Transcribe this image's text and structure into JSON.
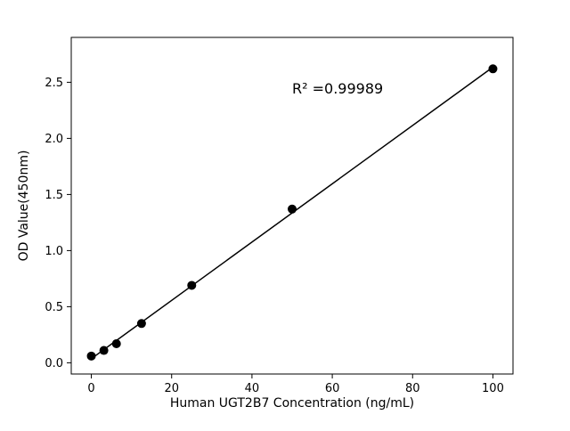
{
  "figure": {
    "background": "#ffffff"
  },
  "chart_data": {
    "type": "scatter",
    "title": "",
    "xlabel": "Human UGT2B7 Concentration (ng/mL)",
    "ylabel": "OD Value(450nm)",
    "annotation": "R² =0.99989",
    "x": [
      0,
      3.125,
      6.25,
      12.5,
      25,
      50,
      100
    ],
    "y": [
      0.06,
      0.11,
      0.17,
      0.35,
      0.69,
      1.37,
      2.62
    ],
    "fit": "linear",
    "xlim": [
      -5,
      105
    ],
    "ylim": [
      -0.1,
      2.9
    ],
    "xticks": [
      0,
      20,
      40,
      60,
      80,
      100
    ],
    "yticks": [
      0.0,
      0.5,
      1.0,
      1.5,
      2.0,
      2.5
    ],
    "grid": false,
    "legend": "none",
    "marker_color": "#000000",
    "line_color": "#000000"
  }
}
